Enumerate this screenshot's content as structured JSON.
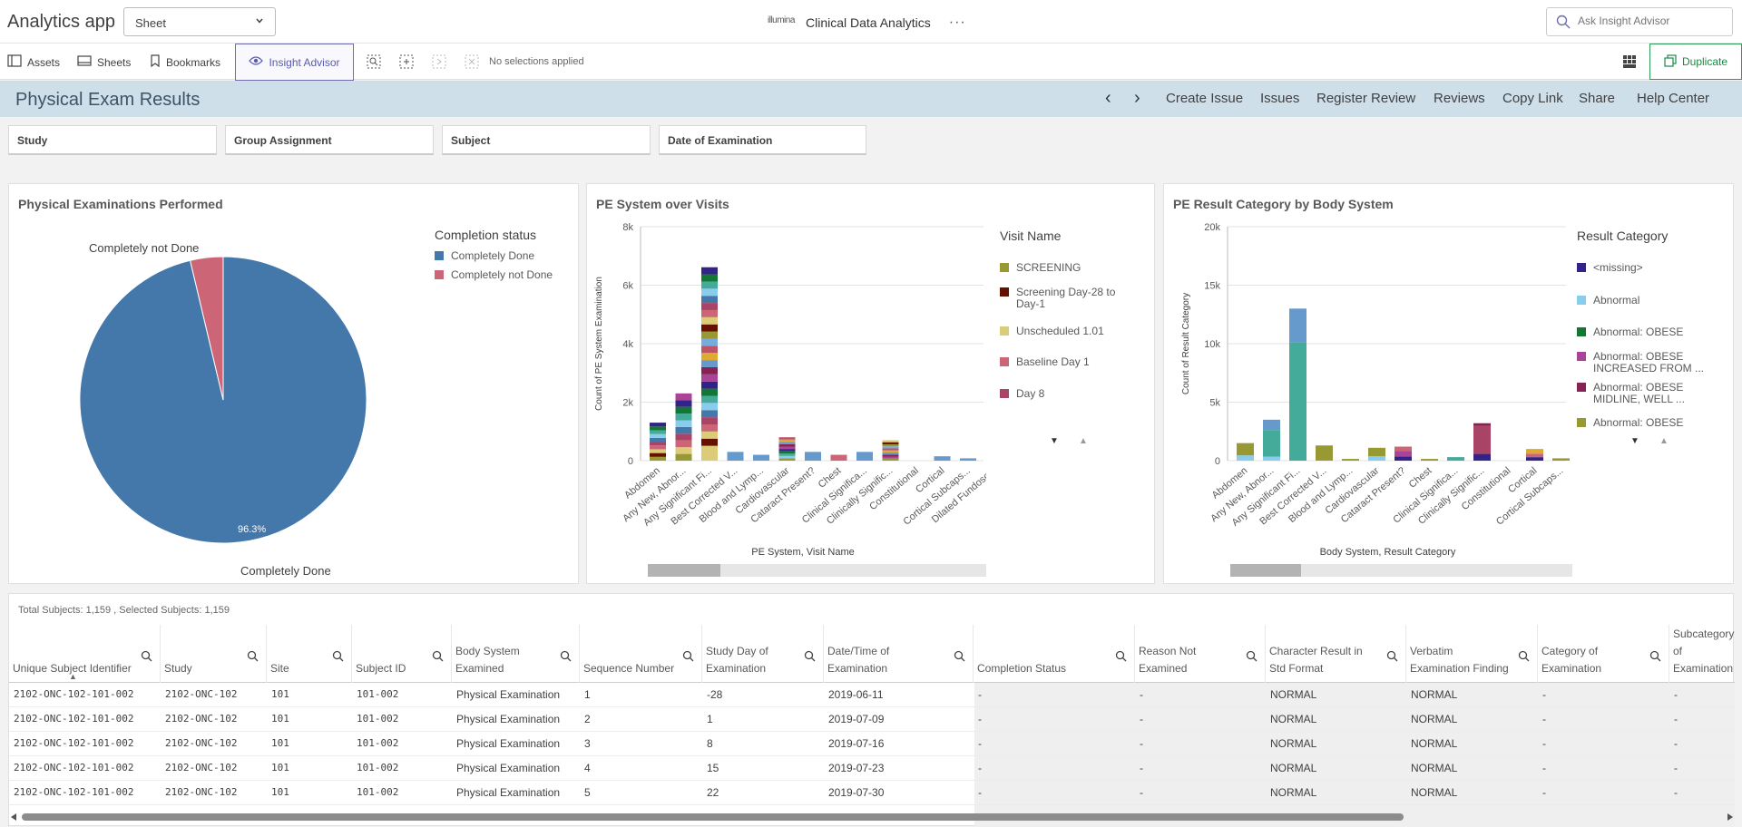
{
  "app": {
    "title": "Analytics app",
    "sheet_value": "Sheet",
    "brand_logo": "illumina",
    "brand_name": "Clinical Data Analytics",
    "search_placeholder": "Ask Insight Advisor"
  },
  "toolbar": {
    "assets": "Assets",
    "sheets": "Sheets",
    "bookmarks": "Bookmarks",
    "insight": "Insight Advisor",
    "no_selections": "No selections applied",
    "duplicate": "Duplicate"
  },
  "header": {
    "page_title": "Physical Exam Results",
    "links": [
      "Create Issue",
      "Issues",
      "Register Review",
      "Reviews",
      "Copy Link",
      "Share",
      "Help Center"
    ]
  },
  "filters": [
    "Study",
    "Group Assignment",
    "Subject",
    "Date of Examination"
  ],
  "colors": {
    "accent": "#5a5ab0",
    "duplicate": "#1b8a45",
    "titlebar": "#cfdfe9",
    "done": "#4477aa",
    "not_done": "#cc6677"
  },
  "pie": {
    "title": "Physical Examinations Performed",
    "legend_title": "Completion status",
    "chart_data": {
      "type": "pie",
      "slices": [
        {
          "label": "Completely Done",
          "value": 96.3,
          "color": "#4477aa"
        },
        {
          "label": "Completely not Done",
          "value": 3.7,
          "color": "#cc6677"
        }
      ],
      "data_label": "96.3%"
    }
  },
  "visits": {
    "title": "PE System over Visits",
    "legend_title": "Visit Name",
    "legend": [
      {
        "label": "SCREENING",
        "color": "#999933"
      },
      {
        "label": "Screening Day-28 to Day-1",
        "color": "#661100"
      },
      {
        "label": "Unscheduled 1.01",
        "color": "#ddcc77"
      },
      {
        "label": "Baseline Day 1",
        "color": "#cc6677"
      },
      {
        "label": "Day 8",
        "color": "#aa4466"
      }
    ],
    "chart_data": {
      "type": "bar",
      "categories": [
        "Abdomen",
        "Any New, Abnor...",
        "Any Significant Fi...",
        "Best Corrected V...",
        "Blood and Lymp...",
        "Cardiovascular",
        "Cataract Present?",
        "Chest",
        "Clinical Significa...",
        "Clinically Signific...",
        "Constitutional",
        "Cortical",
        "Cortical Subcaps...",
        "Dilated Fundosc..."
      ],
      "values": [
        1300,
        2300,
        6350,
        300,
        200,
        800,
        300,
        200,
        300,
        700,
        0,
        150,
        80,
        0
      ],
      "xlabel": "PE System, Visit Name",
      "ylabel": "Count of PE System Examination",
      "ylim": [
        0,
        8000
      ],
      "yticks": [
        "0",
        "2k",
        "4k",
        "6k",
        "8k"
      ]
    }
  },
  "results": {
    "title": "PE Result Category by Body System",
    "legend_title": "Result Category",
    "legend": [
      {
        "label": "<missing>",
        "color": "#332288"
      },
      {
        "label": "Abnormal",
        "color": "#88ccee"
      },
      {
        "label": "Abnormal: OBESE",
        "color": "#117733"
      },
      {
        "label": "Abnormal: OBESE INCREASED FROM ...",
        "color": "#aa4499"
      },
      {
        "label": "Abnormal: OBESE MIDLINE, WELL ...",
        "color": "#882255"
      },
      {
        "label": "Abnormal: OBESE",
        "color": "#999933"
      }
    ],
    "chart_data": {
      "type": "bar",
      "categories": [
        "Abdomen",
        "Any New, Abnor...",
        "Any Significant Fi...",
        "Best Corrected V...",
        "Blood and Lymp...",
        "Cardiovascular",
        "Cataract Present?",
        "Chest",
        "Clinical Significa...",
        "Clinically Signific...",
        "Constitutional",
        "Cortical",
        "Cortical Subcaps..."
      ],
      "values": [
        1500,
        3500,
        13000,
        1300,
        150,
        1100,
        1200,
        150,
        300,
        3200,
        0,
        1000,
        200
      ],
      "xlabel": "Body System, Result Category",
      "ylabel": "Count of Result Category",
      "ylim": [
        0,
        20000
      ],
      "yticks": [
        "0",
        "5k",
        "10k",
        "15k",
        "20k"
      ]
    }
  },
  "table": {
    "totals": "Total Subjects: 1,159 , Selected Subjects: 1,159",
    "columns": [
      "Unique Subject Identifier",
      "Study",
      "Site",
      "Subject ID",
      "Body System Examined",
      "Sequence Number",
      "Study Day of Examination",
      "Date/Time of Examination",
      "Completion Status",
      "Reason Not Examined",
      "Character Result in Std Format",
      "Verbatim Examination Finding",
      "Category of Examination",
      "Subcategory of Examination"
    ],
    "rows": [
      [
        "2102-ONC-102-101-002",
        "2102-ONC-102",
        "101",
        "101-002",
        "Physical Examination",
        "1",
        "-28",
        "2019-06-11",
        "-",
        "-",
        "NORMAL",
        "NORMAL",
        "-",
        "-"
      ],
      [
        "2102-ONC-102-101-002",
        "2102-ONC-102",
        "101",
        "101-002",
        "Physical Examination",
        "2",
        "1",
        "2019-07-09",
        "-",
        "-",
        "NORMAL",
        "NORMAL",
        "-",
        "-"
      ],
      [
        "2102-ONC-102-101-002",
        "2102-ONC-102",
        "101",
        "101-002",
        "Physical Examination",
        "3",
        "8",
        "2019-07-16",
        "-",
        "-",
        "NORMAL",
        "NORMAL",
        "-",
        "-"
      ],
      [
        "2102-ONC-102-101-002",
        "2102-ONC-102",
        "101",
        "101-002",
        "Physical Examination",
        "4",
        "15",
        "2019-07-23",
        "-",
        "-",
        "NORMAL",
        "NORMAL",
        "-",
        "-"
      ],
      [
        "2102-ONC-102-101-002",
        "2102-ONC-102",
        "101",
        "101-002",
        "Physical Examination",
        "5",
        "22",
        "2019-07-30",
        "-",
        "-",
        "NORMAL",
        "NORMAL",
        "-",
        "-"
      ]
    ]
  }
}
